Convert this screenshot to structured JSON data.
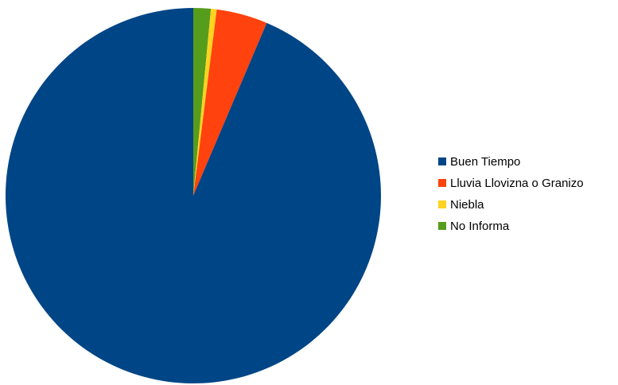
{
  "chart_data": {
    "type": "pie",
    "title": "",
    "slices": [
      {
        "label": "Buen Tiempo",
        "value": 93.6,
        "color": "#004586"
      },
      {
        "label": "Lluvia Llovizna o Granizo",
        "value": 4.4,
        "color": "#ff420e"
      },
      {
        "label": "Niebla",
        "value": 0.5,
        "color": "#ffd320"
      },
      {
        "label": "No Informa",
        "value": 1.5,
        "color": "#579d1c"
      }
    ],
    "legend_position": "right"
  }
}
